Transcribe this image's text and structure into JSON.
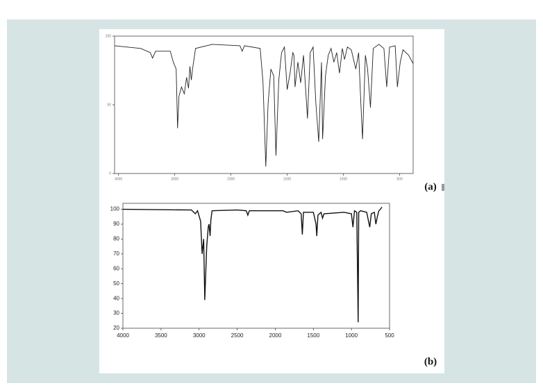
{
  "chart_data": [
    {
      "type": "line",
      "label": "(a)",
      "color": "#222222",
      "xlim": [
        4070,
        380
      ],
      "ylim": [
        0,
        100
      ],
      "xticks": [
        4000,
        3000,
        2000,
        1500,
        1000,
        500
      ],
      "yticks": [
        0,
        50,
        100
      ],
      "x": [
        4070,
        3605,
        3435,
        3395,
        3340,
        3080,
        3025,
        2975,
        2950,
        2925,
        2880,
        2830,
        2790,
        2755,
        2730,
        2705,
        2680,
        2630,
        2335,
        1920,
        1900,
        1880,
        1740,
        1715,
        1690,
        1670,
        1645,
        1620,
        1600,
        1575,
        1550,
        1525,
        1500,
        1475,
        1450,
        1440,
        1430,
        1405,
        1380,
        1355,
        1320,
        1295,
        1270,
        1245,
        1220,
        1195,
        1185,
        1160,
        1135,
        1110,
        1085,
        1060,
        1035,
        1010,
        990,
        965,
        930,
        890,
        865,
        845,
        830,
        805,
        785,
        760,
        735,
        685,
        640,
        615,
        590,
        540,
        520,
        495,
        470,
        420,
        380
      ],
      "values": [
        93,
        91,
        88,
        84,
        89,
        89,
        81,
        76,
        33,
        56,
        63,
        58,
        70,
        62,
        78,
        68,
        77,
        91,
        94,
        93,
        89,
        93,
        91,
        66,
        5,
        51,
        76,
        71,
        13,
        68,
        88,
        92,
        61,
        73,
        88,
        86,
        63,
        81,
        66,
        86,
        40,
        88,
        92,
        51,
        23,
        81,
        25,
        71,
        86,
        91,
        81,
        88,
        73,
        91,
        83,
        92,
        90,
        76,
        88,
        51,
        25,
        86,
        76,
        48,
        91,
        94,
        91,
        63,
        92,
        93,
        63,
        81,
        90,
        86,
        80
      ]
    },
    {
      "type": "line",
      "label": "(b)",
      "color": "#111111",
      "xlim": [
        4000,
        500
      ],
      "ylim": [
        20,
        104
      ],
      "xticks": [
        4000,
        3500,
        3000,
        2500,
        2000,
        1500,
        1000,
        500
      ],
      "yticks": [
        20,
        30,
        40,
        50,
        60,
        70,
        80,
        90,
        100
      ],
      "x": [
        4000,
        3100,
        3050,
        3020,
        2980,
        2960,
        2940,
        2925,
        2900,
        2880,
        2870,
        2855,
        2845,
        2830,
        2500,
        2380,
        2360,
        2340,
        1900,
        1850,
        1700,
        1660,
        1645,
        1630,
        1500,
        1465,
        1455,
        1440,
        1400,
        1380,
        1360,
        1100,
        1000,
        980,
        960,
        930,
        912,
        905,
        880,
        800,
        780,
        760,
        740,
        700,
        680,
        660,
        640,
        620,
        600
      ],
      "values": [
        100,
        99.5,
        97,
        99,
        92,
        70,
        80,
        39,
        75,
        88,
        90,
        82,
        93,
        99,
        99.5,
        99,
        96,
        99,
        99,
        98,
        99,
        97,
        83,
        98,
        98,
        90,
        82,
        96,
        98,
        94,
        97,
        98,
        97,
        88,
        99,
        98,
        24,
        98,
        99,
        98,
        93,
        88,
        97,
        98,
        90,
        95,
        99,
        100,
        101.5
      ]
    }
  ]
}
